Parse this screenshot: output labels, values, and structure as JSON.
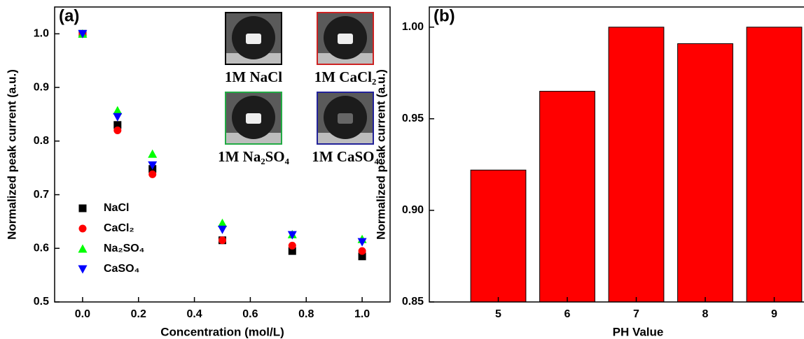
{
  "chart_data": [
    {
      "type": "scatter",
      "panel_label": "(a)",
      "x_label": "Concentration (mol/L)",
      "y_label": "Normalized peak current (a.u.)",
      "x": [
        0,
        0.125,
        0.25,
        0.5,
        0.75,
        1.0
      ],
      "series": [
        {
          "name": "NaCl",
          "color": "#000000",
          "marker": "square",
          "values": [
            1.0,
            0.83,
            0.748,
            0.615,
            0.595,
            0.585
          ]
        },
        {
          "name": "CaCl₂",
          "color": "#ff0000",
          "marker": "circle",
          "values": [
            1.0,
            0.82,
            0.738,
            0.615,
            0.605,
            0.595
          ]
        },
        {
          "name": "Na₂SO₄",
          "color": "#00ff00",
          "marker": "triangle-up",
          "values": [
            1.0,
            0.857,
            0.776,
            0.647,
            0.626,
            0.617
          ]
        },
        {
          "name": "CaSO₄",
          "color": "#0000ff",
          "marker": "triangle-down",
          "values": [
            1.0,
            0.845,
            0.755,
            0.635,
            0.625,
            0.612
          ]
        }
      ],
      "xlim": [
        -0.1,
        1.1
      ],
      "xticks": [
        {
          "value": 0,
          "label": "0.0"
        },
        {
          "value": 0.2,
          "label": "0.2"
        },
        {
          "value": 0.4,
          "label": "0.4"
        },
        {
          "value": 0.6,
          "label": "0.6"
        },
        {
          "value": 0.8,
          "label": "0.8"
        },
        {
          "value": 1.0,
          "label": "1.0"
        }
      ],
      "ylim": [
        0.5,
        1.05
      ],
      "yticks": [
        {
          "value": 0.5,
          "label": "0.5"
        },
        {
          "value": 0.6,
          "label": "0.6"
        },
        {
          "value": 0.7,
          "label": "0.7"
        },
        {
          "value": 0.8,
          "label": "0.8"
        },
        {
          "value": 0.9,
          "label": "0.9"
        },
        {
          "value": 1.0,
          "label": "1.0"
        }
      ],
      "legend": "lower left",
      "insets": [
        {
          "label": "1M NaCl",
          "color": "#000000"
        },
        {
          "label": "1M CaCl₂",
          "color": "#cc2222"
        },
        {
          "label": "1M Na₂SO₄",
          "color": "#22aa44"
        },
        {
          "label": "1M CaSO₄",
          "color": "#222299"
        }
      ]
    },
    {
      "type": "bar",
      "panel_label": "(b)",
      "x_label": "PH Value",
      "y_label": "Normalized peak current (a.u.)",
      "categories": [
        "5",
        "6",
        "7",
        "8",
        "9"
      ],
      "values": [
        0.922,
        0.965,
        1.0,
        0.991,
        1.0
      ],
      "color": "#ff0000",
      "ylim": [
        0.85,
        1.011
      ],
      "yticks": [
        {
          "value": 0.85,
          "label": "0.85"
        },
        {
          "value": 0.9,
          "label": "0.90"
        },
        {
          "value": 0.95,
          "label": "0.95"
        },
        {
          "value": 1.0,
          "label": "1.00"
        }
      ]
    }
  ]
}
